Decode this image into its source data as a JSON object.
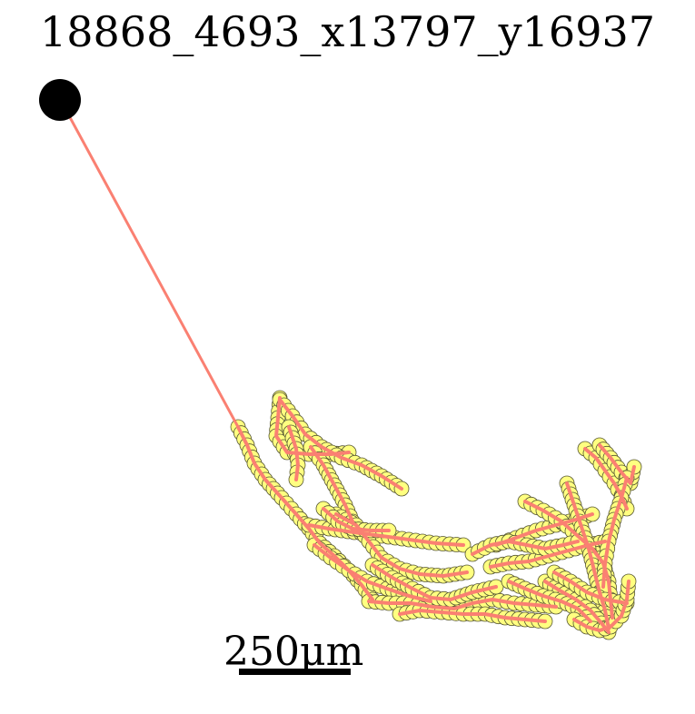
{
  "title": "18868_4693_x13797_y16937",
  "scale_bar": {
    "label": "250μm"
  },
  "colors": {
    "path": "#fa8072",
    "node_fill": "#ffff80",
    "node_stroke": "#555533",
    "soma": "#000000",
    "scale_bar": "#000000"
  },
  "neuron": {
    "soma_marker": "black-circle",
    "branch_marker": "yellow-circle",
    "branch_count": 24
  }
}
